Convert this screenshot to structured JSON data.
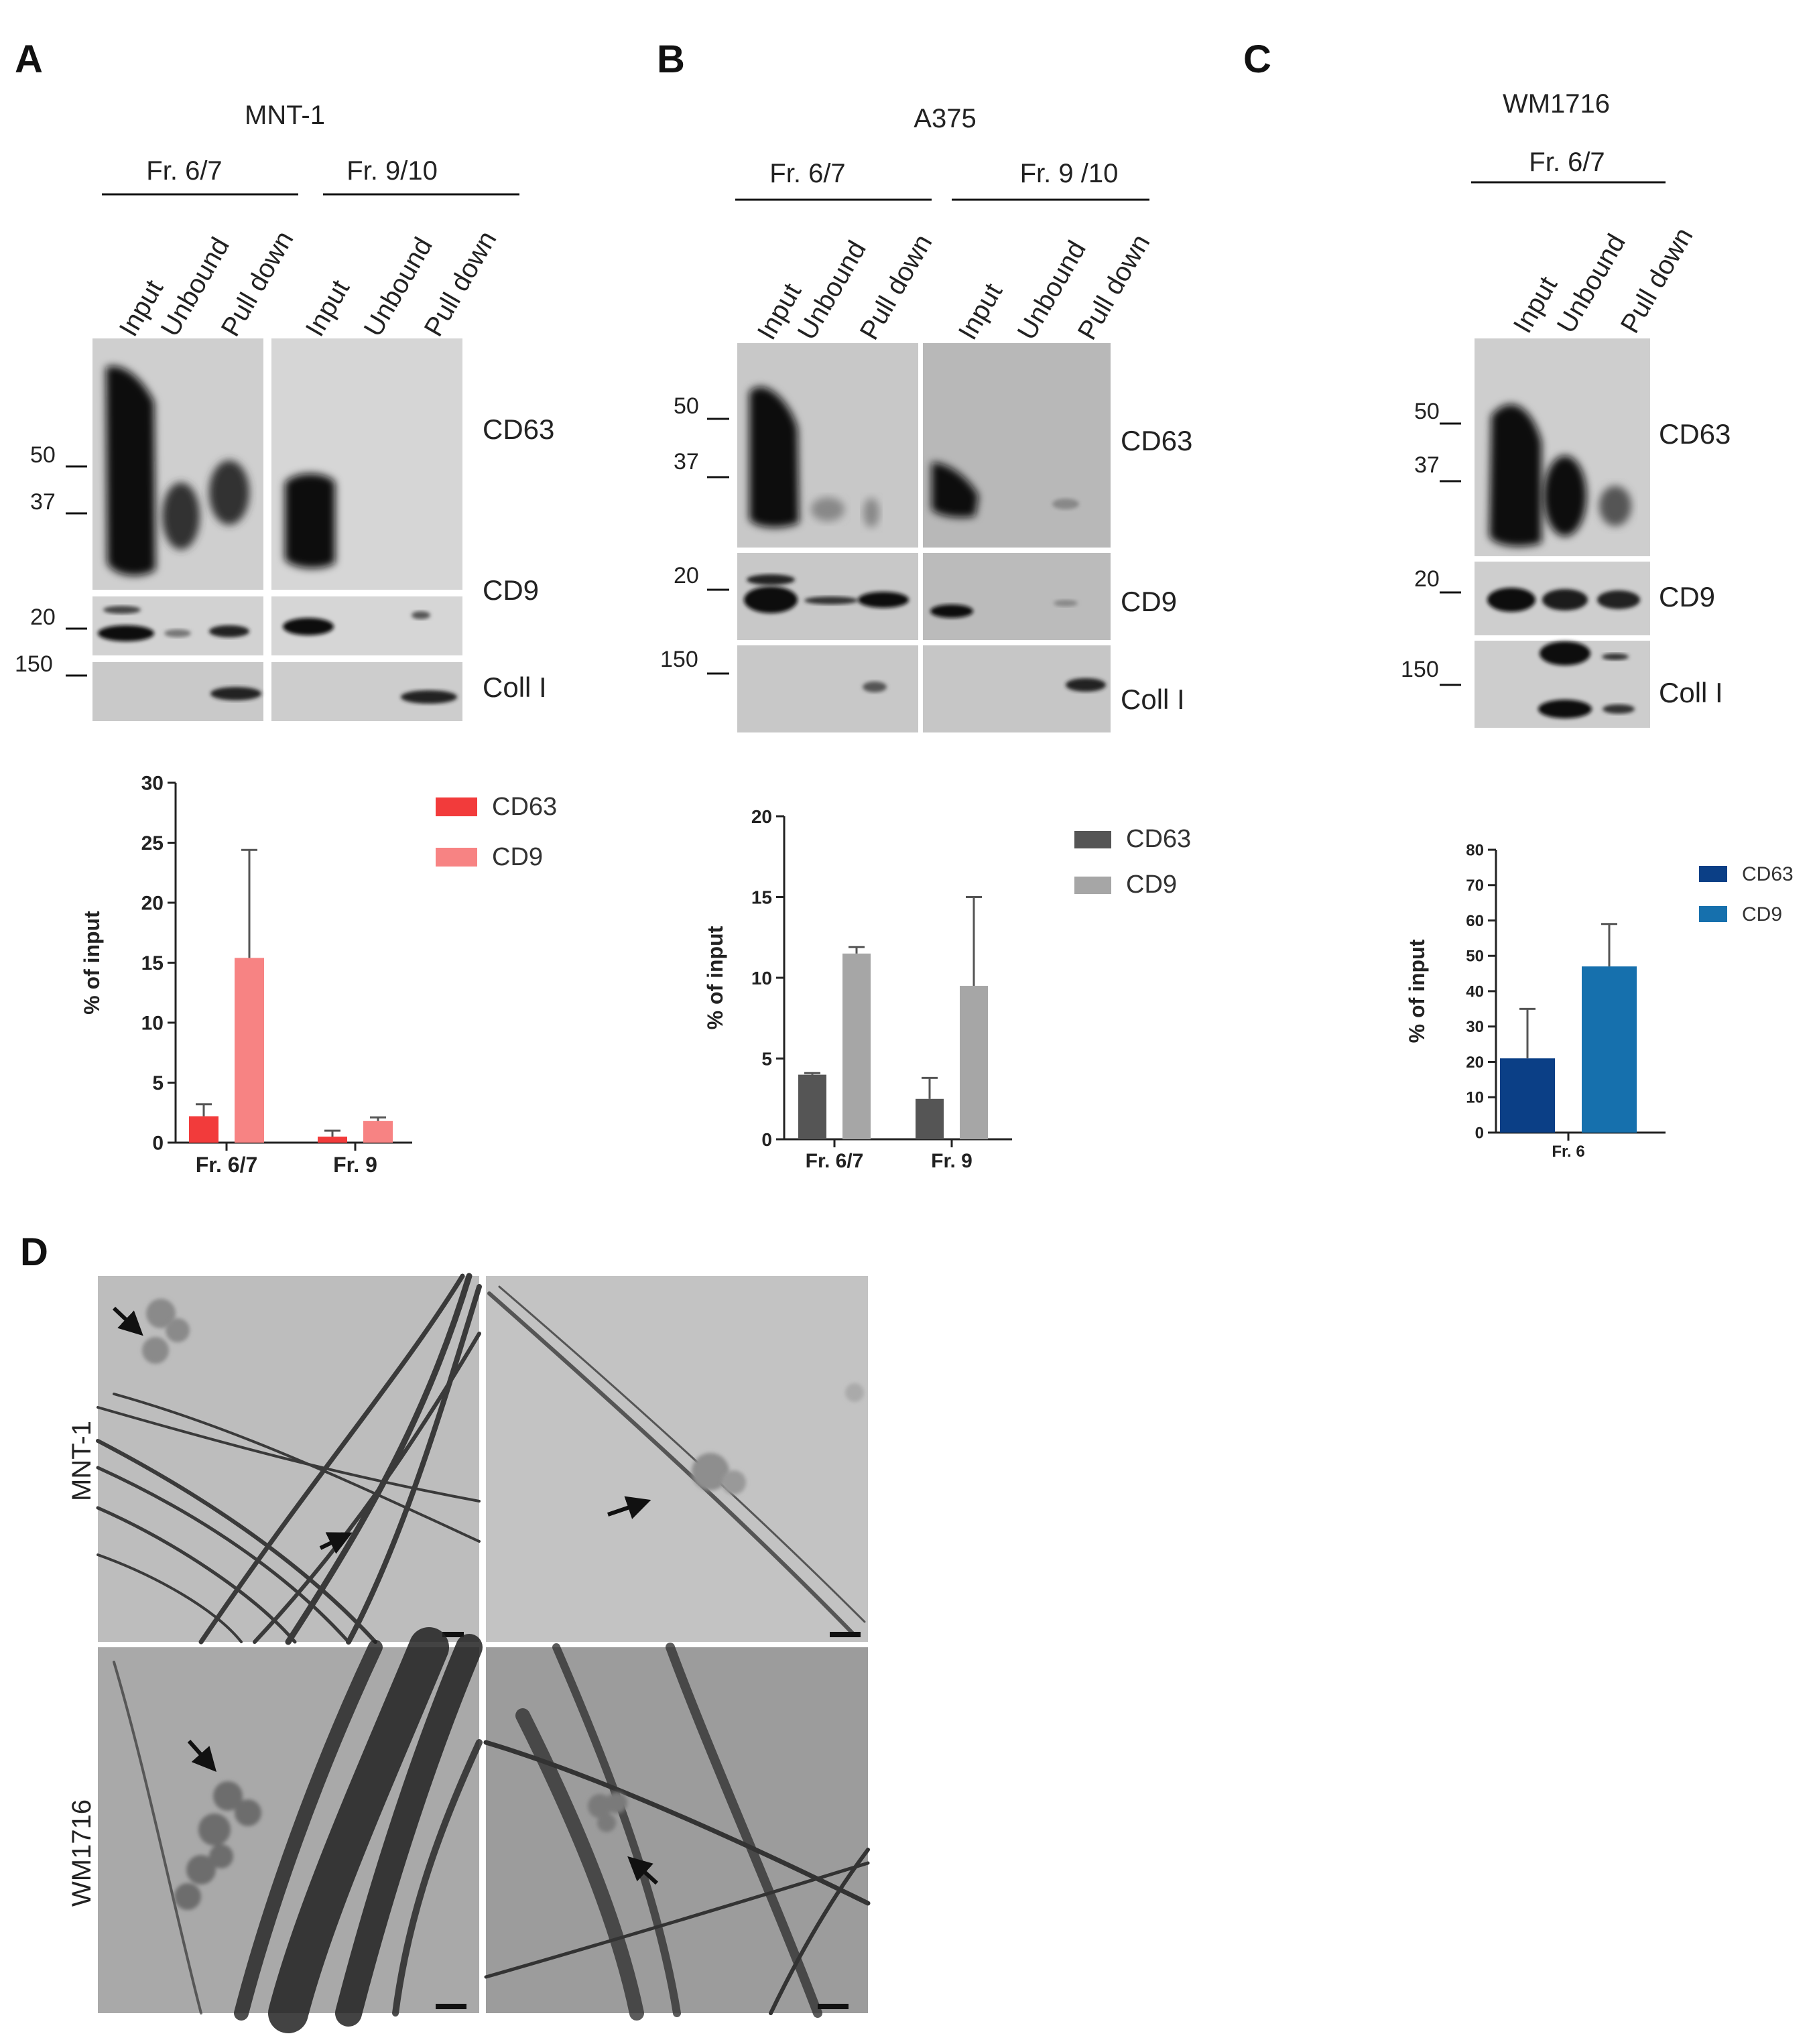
{
  "panels": {
    "A": {
      "label": "A",
      "cell_line": "MNT-1",
      "groups": [
        "Fr. 6/7",
        "Fr. 9/10"
      ],
      "lanes": [
        "Input",
        "Unbound",
        "Pull down"
      ],
      "mw_markers": [
        "50",
        "37",
        "20",
        "150"
      ],
      "proteins": [
        "CD63",
        "CD9",
        "Coll I"
      ]
    },
    "B": {
      "label": "B",
      "cell_line": "A375",
      "groups": [
        "Fr. 6/7",
        "Fr. 9 /10"
      ],
      "lanes": [
        "Input",
        "Unbound",
        "Pull down"
      ],
      "mw_markers": [
        "50",
        "37",
        "20",
        "150"
      ],
      "proteins": [
        "CD63",
        "CD9",
        "Coll I"
      ]
    },
    "C": {
      "label": "C",
      "cell_line": "WM1716",
      "groups": [
        "Fr. 6/7"
      ],
      "lanes": [
        "Input",
        "Unbound",
        "Pull down"
      ],
      "mw_markers": [
        "50",
        "37",
        "20",
        "150"
      ],
      "proteins": [
        "CD63",
        "CD9",
        "Coll I"
      ]
    },
    "D": {
      "label": "D",
      "rows": [
        "MNT-1",
        "WM1716"
      ]
    }
  },
  "colors": {
    "A_cd63": "#f23b3b",
    "A_cd9": "#f78383",
    "B_cd63": "#555555",
    "B_cd9": "#a6a6a6",
    "C_cd63": "#0b3f86",
    "C_cd9": "#1670ad"
  },
  "chart_data": [
    {
      "type": "bar",
      "panel": "A",
      "categories": [
        "Fr. 6/7",
        "Fr. 9"
      ],
      "series": [
        {
          "name": "CD63",
          "values": [
            2.2,
            0.5
          ],
          "errors": [
            1.0,
            0.5
          ]
        },
        {
          "name": "CD9",
          "values": [
            15.4,
            1.8
          ],
          "errors": [
            9.0,
            0.3
          ]
        }
      ],
      "ylabel": "% of input",
      "ylim": [
        0,
        30
      ],
      "yticks": [
        0,
        5,
        10,
        15,
        20,
        25,
        30
      ],
      "legend": "top-right"
    },
    {
      "type": "bar",
      "panel": "B",
      "categories": [
        "Fr. 6/7",
        "Fr. 9"
      ],
      "series": [
        {
          "name": "CD63",
          "values": [
            4.0,
            2.5
          ],
          "errors": [
            0.1,
            1.3
          ]
        },
        {
          "name": "CD9",
          "values": [
            11.5,
            9.5
          ],
          "errors": [
            0.4,
            5.5
          ]
        }
      ],
      "ylabel": "% of input",
      "ylim": [
        0,
        20
      ],
      "yticks": [
        0,
        5,
        10,
        15,
        20
      ],
      "legend": "top-right"
    },
    {
      "type": "bar",
      "panel": "C",
      "categories": [
        "Fr. 6"
      ],
      "series": [
        {
          "name": "CD63",
          "values": [
            21
          ],
          "errors": [
            14
          ]
        },
        {
          "name": "CD9",
          "values": [
            47
          ],
          "errors": [
            12
          ]
        }
      ],
      "ylabel": "% of input",
      "ylim": [
        0,
        80
      ],
      "yticks": [
        0,
        10,
        20,
        30,
        40,
        50,
        60,
        70,
        80
      ],
      "legend": "top-right"
    }
  ]
}
